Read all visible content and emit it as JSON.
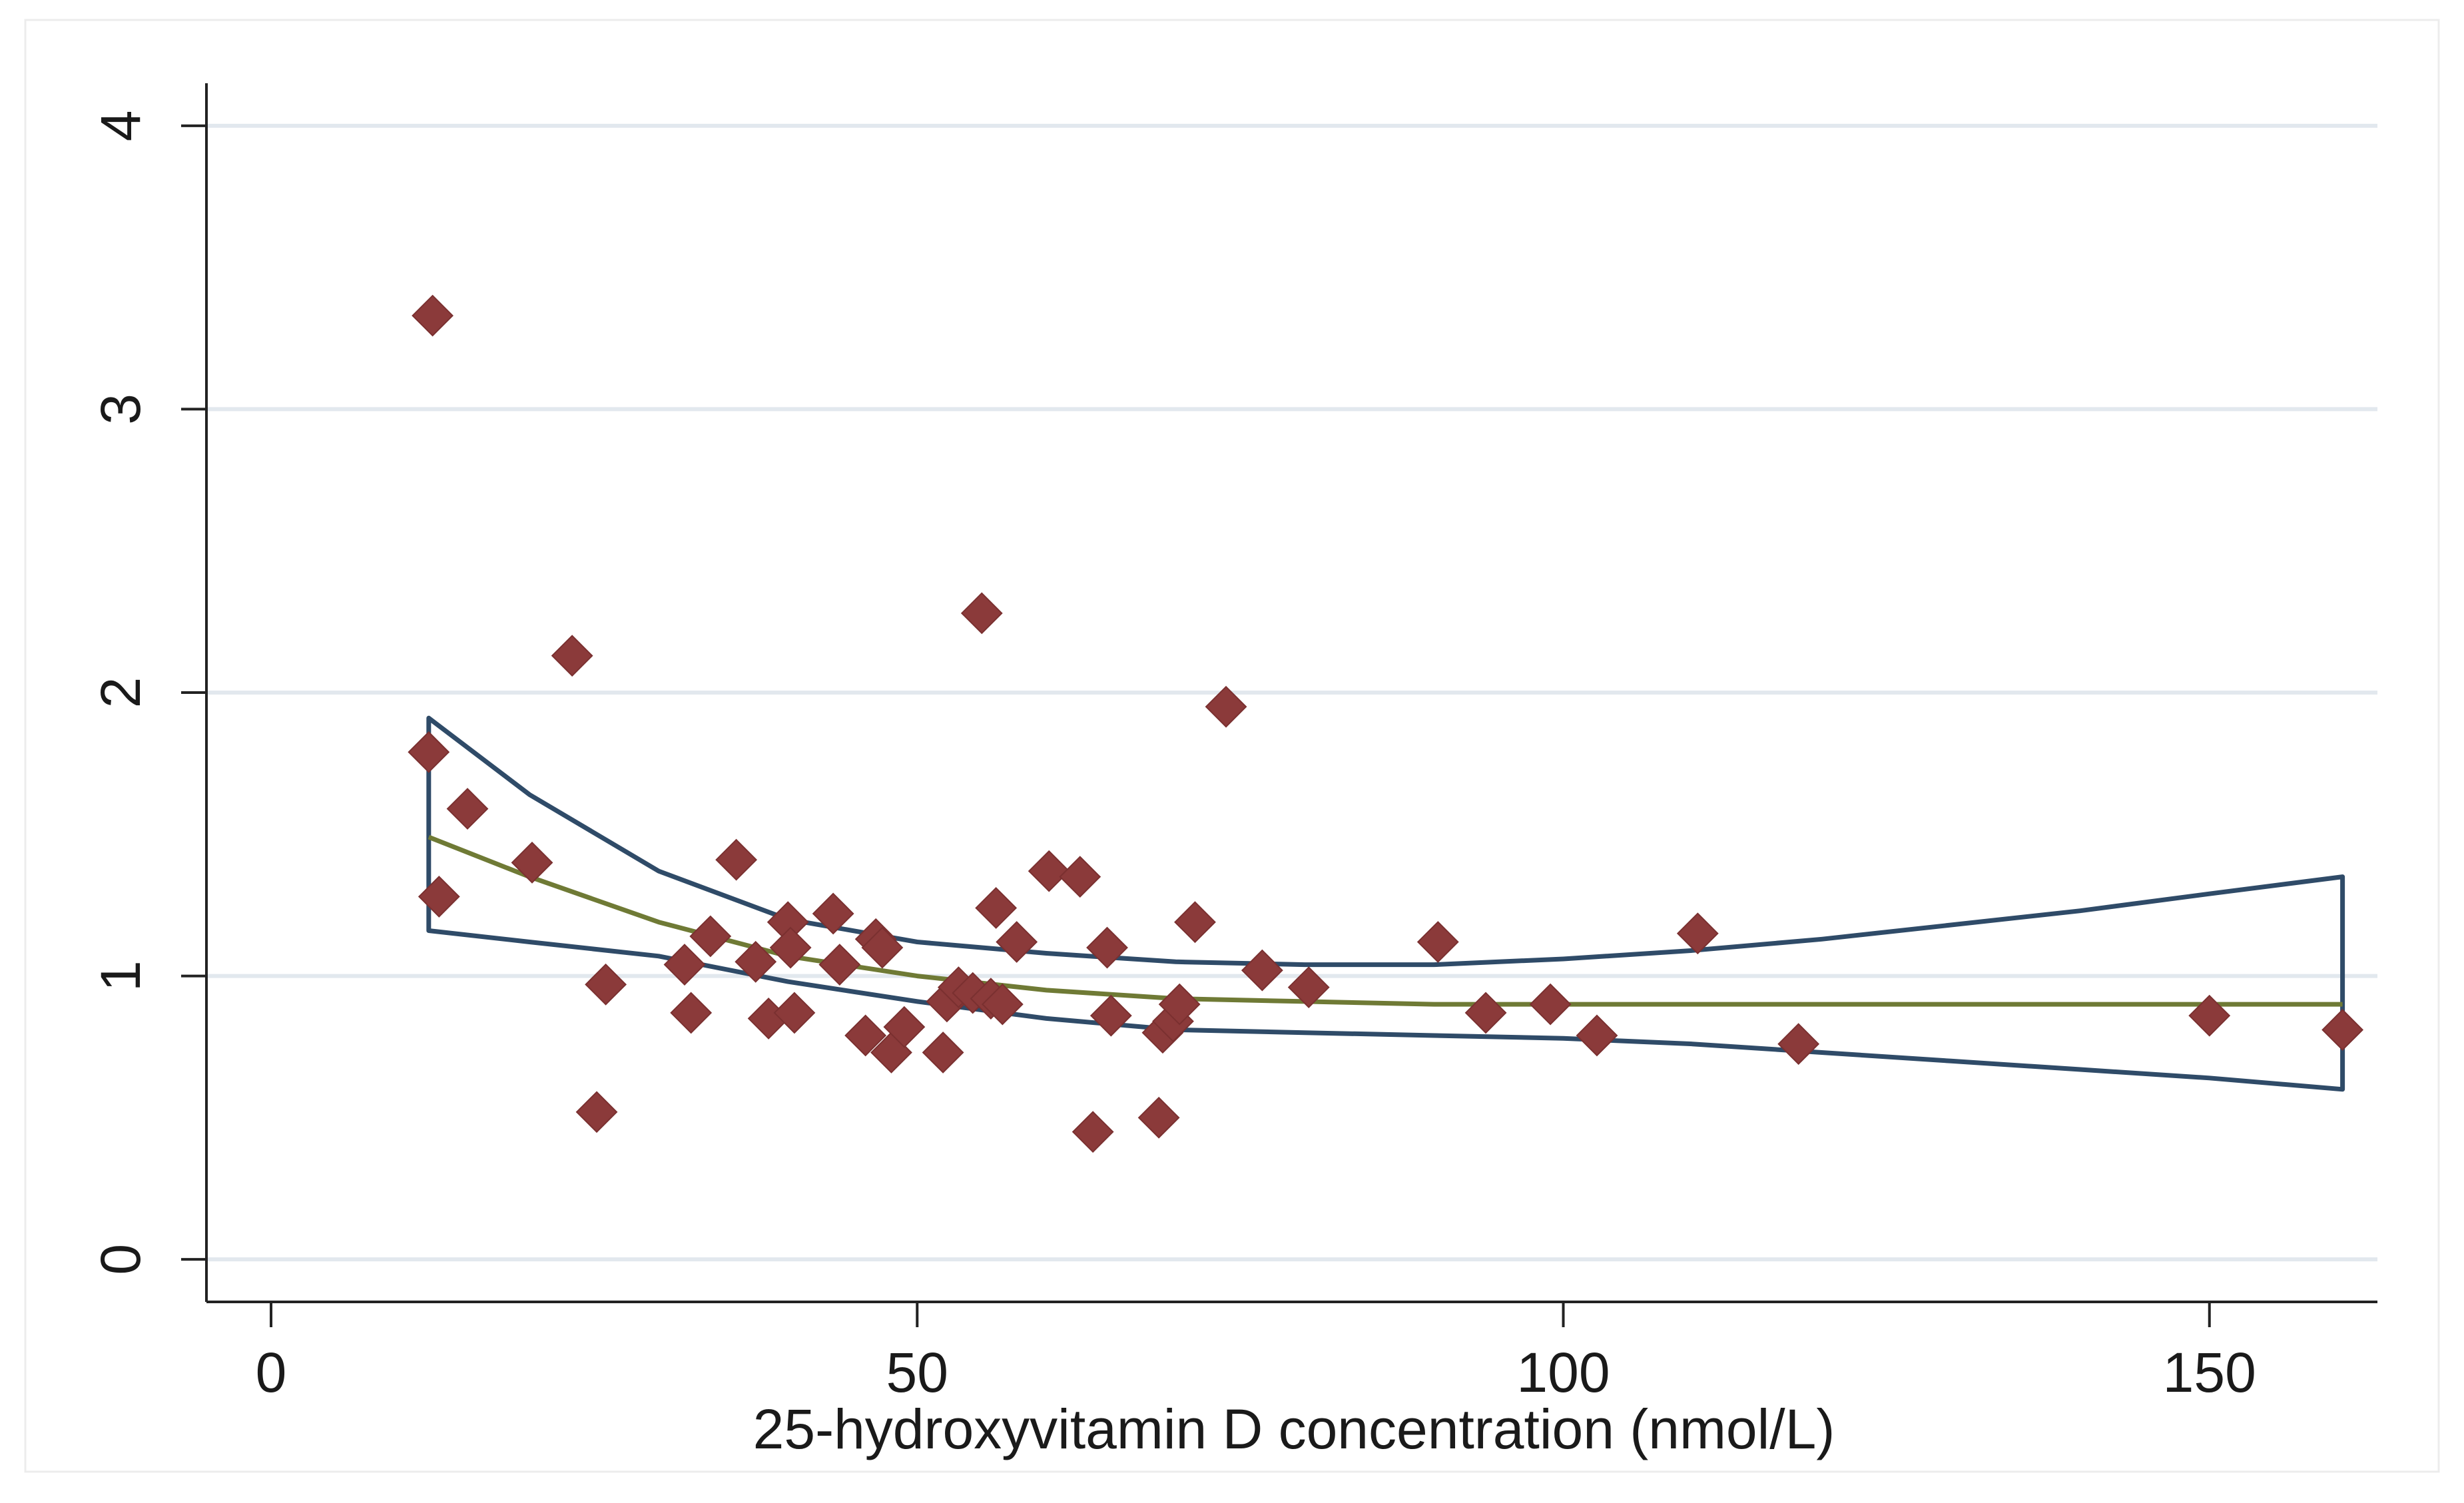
{
  "chart_data": {
    "type": "scatter",
    "title": "",
    "xlabel": "25-hydroxyvitamin D concentration (nmol/L)",
    "ylabel": "",
    "xlim": [
      -5,
      163
    ],
    "ylim": [
      -0.15,
      4.15
    ],
    "x_ticks": [
      0,
      50,
      100,
      150
    ],
    "y_ticks": [
      0,
      1,
      2,
      3,
      4
    ],
    "grid": "horizontal",
    "colors": {
      "points": "#8b3a3a",
      "fit_line": "#6f7a35",
      "ci_band": "#2f4b68",
      "grid": "#e2e8ee",
      "axis": "#222222"
    },
    "scatter": {
      "name": "observations",
      "points": [
        [
          12.5,
          3.33
        ],
        [
          12.2,
          1.79
        ],
        [
          13,
          1.28
        ],
        [
          15.2,
          1.59
        ],
        [
          20.2,
          1.4
        ],
        [
          23.3,
          2.13
        ],
        [
          25.2,
          0.52
        ],
        [
          25.9,
          0.97
        ],
        [
          32,
          1.04
        ],
        [
          32.5,
          0.87
        ],
        [
          34,
          1.14
        ],
        [
          36,
          1.41
        ],
        [
          37.5,
          1.05
        ],
        [
          38.5,
          0.85
        ],
        [
          40,
          1.19
        ],
        [
          40.5,
          0.87
        ],
        [
          40.2,
          1.1
        ],
        [
          43.5,
          1.22
        ],
        [
          44,
          1.04
        ],
        [
          46,
          0.79
        ],
        [
          46.8,
          1.13
        ],
        [
          47.3,
          1.1
        ],
        [
          48,
          0.73
        ],
        [
          49,
          0.82
        ],
        [
          52,
          0.73
        ],
        [
          52.3,
          0.91
        ],
        [
          53.2,
          0.96
        ],
        [
          54.3,
          0.94
        ],
        [
          55,
          2.28
        ],
        [
          55.7,
          0.92
        ],
        [
          56.1,
          1.24
        ],
        [
          56.6,
          0.9
        ],
        [
          57.7,
          1.12
        ],
        [
          60.2,
          1.37
        ],
        [
          62.6,
          1.35
        ],
        [
          63.6,
          0.45
        ],
        [
          64.7,
          1.1
        ],
        [
          65,
          0.86
        ],
        [
          68.7,
          0.5
        ],
        [
          69,
          0.8
        ],
        [
          69.8,
          0.84
        ],
        [
          70.3,
          0.9
        ],
        [
          71.5,
          1.19
        ],
        [
          73.9,
          1.95
        ],
        [
          76.7,
          1.02
        ],
        [
          80.3,
          0.96
        ],
        [
          90.3,
          1.12
        ],
        [
          94,
          0.87
        ],
        [
          99,
          0.9
        ],
        [
          102.6,
          0.79
        ],
        [
          110.4,
          1.15
        ],
        [
          118.2,
          0.76
        ],
        [
          150,
          0.86
        ],
        [
          160.3,
          0.81
        ]
      ]
    },
    "fitted_line": {
      "name": "fitted",
      "x": [
        12.2,
        20,
        30,
        40,
        50,
        60,
        70,
        80,
        90,
        100,
        110,
        120,
        130,
        140,
        150,
        160.3
      ],
      "y": [
        1.49,
        1.35,
        1.19,
        1.07,
        1.0,
        0.95,
        0.92,
        0.91,
        0.9,
        0.9,
        0.9,
        0.9,
        0.9,
        0.9,
        0.9,
        0.9
      ]
    },
    "ci_upper": {
      "name": "upper bound",
      "x": [
        12.2,
        20,
        30,
        40,
        50,
        60,
        70,
        80,
        90,
        100,
        110,
        120,
        130,
        140,
        150,
        160.3
      ],
      "y": [
        1.91,
        1.64,
        1.37,
        1.2,
        1.12,
        1.08,
        1.05,
        1.04,
        1.04,
        1.06,
        1.09,
        1.13,
        1.18,
        1.23,
        1.29,
        1.35
      ]
    },
    "ci_lower": {
      "name": "lower bound",
      "x": [
        12.2,
        20,
        30,
        40,
        50,
        60,
        70,
        80,
        90,
        100,
        110,
        120,
        130,
        140,
        150,
        160.3
      ],
      "y": [
        1.16,
        1.12,
        1.07,
        0.98,
        0.91,
        0.85,
        0.81,
        0.8,
        0.79,
        0.78,
        0.76,
        0.73,
        0.7,
        0.67,
        0.64,
        0.6
      ]
    }
  }
}
